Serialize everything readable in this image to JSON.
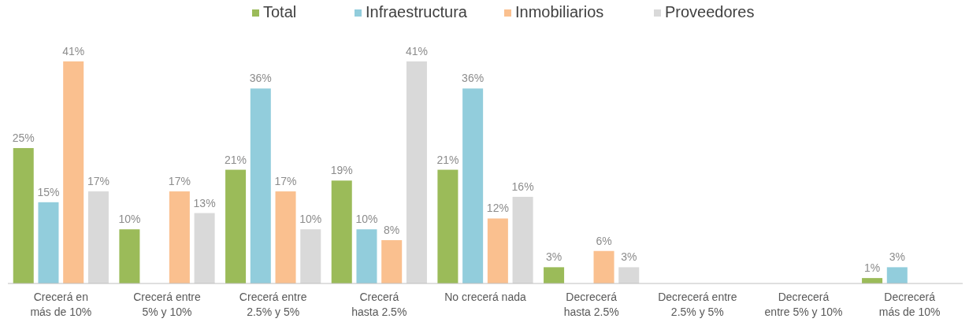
{
  "chart_data": {
    "type": "bar",
    "categories": [
      "Crecerá en más de 10%",
      "Crecerá entre 5% y 10%",
      "Crecerá entre 2.5% y 5%",
      "Crecerá hasta 2.5%",
      "No crecerá nada",
      "Decrecerá hasta 2.5%",
      "Decrecerá entre 2.5% y 5%",
      "Decrecerá entre 5% y 10%",
      "Decrecerá más de 10%"
    ],
    "series": [
      {
        "name": "Total",
        "color": "#9bbb59",
        "values": [
          25,
          10,
          21,
          19,
          21,
          3,
          null,
          null,
          1
        ],
        "value_labels": [
          "25%",
          "10%",
          "21%",
          "19%",
          "21%",
          "3%",
          null,
          null,
          "1%"
        ]
      },
      {
        "name": "Infraestructura",
        "color": "#92cddc",
        "values": [
          15,
          null,
          36,
          10,
          36,
          null,
          null,
          null,
          3
        ],
        "value_labels": [
          "15%",
          null,
          "36%",
          "10%",
          "36%",
          null,
          null,
          null,
          "3%"
        ]
      },
      {
        "name": "Inmobiliarios",
        "color": "#fac08f",
        "values": [
          41,
          17,
          17,
          8,
          12,
          6,
          null,
          null,
          null
        ],
        "value_labels": [
          "41%",
          "17%",
          "17%",
          "8%",
          "12%",
          "6%",
          null,
          null,
          null
        ]
      },
      {
        "name": "Proveedores",
        "color": "#d9d9d9",
        "values": [
          17,
          13,
          10,
          41,
          16,
          3,
          null,
          null,
          null
        ],
        "value_labels": [
          "17%",
          "13%",
          "10%",
          "41%",
          "16%",
          "3%",
          null,
          null,
          null
        ]
      }
    ],
    "legend": "top"
  }
}
